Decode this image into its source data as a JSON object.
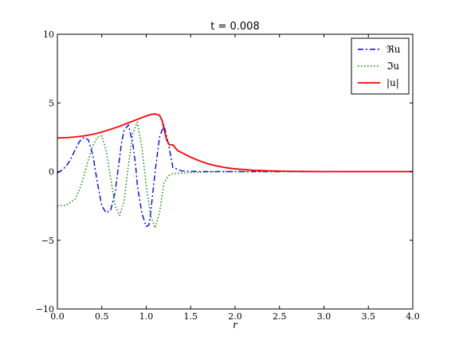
{
  "chart_data": {
    "type": "line",
    "title": "t = 0.008",
    "xlabel": "r",
    "ylabel": "",
    "xlim": [
      0.0,
      4.0
    ],
    "ylim": [
      -10,
      10
    ],
    "xticks": [
      0.0,
      0.5,
      1.0,
      1.5,
      2.0,
      2.5,
      3.0,
      3.5,
      4.0
    ],
    "xtick_labels": [
      "0.0",
      "0.5",
      "1.0",
      "1.5",
      "2.0",
      "2.5",
      "3.0",
      "3.5",
      "4.0"
    ],
    "yticks": [
      -10,
      -5,
      0,
      5,
      10
    ],
    "ytick_labels": [
      "−10",
      "−5",
      "0",
      "5",
      "10"
    ],
    "grid": false,
    "legend_position": "top-right",
    "series": [
      {
        "name": "ℜu",
        "color": "#0000ff",
        "style": "dashdot",
        "x": [
          0.0,
          0.05,
          0.1,
          0.15,
          0.2,
          0.25,
          0.3,
          0.35,
          0.4,
          0.45,
          0.5,
          0.55,
          0.6,
          0.65,
          0.7,
          0.72,
          0.75,
          0.8,
          0.85,
          0.88,
          0.9,
          0.95,
          1.0,
          1.03,
          1.05,
          1.1,
          1.15,
          1.2,
          1.25,
          1.3,
          1.4,
          1.6,
          1.8,
          2.0,
          2.5,
          3.0,
          3.5,
          4.0
        ],
        "values": [
          -0.1,
          0.1,
          0.4,
          0.9,
          1.6,
          2.2,
          2.5,
          2.3,
          1.2,
          -0.8,
          -2.5,
          -3.0,
          -2.8,
          -1.5,
          1.0,
          2.0,
          3.0,
          3.4,
          2.0,
          0.5,
          -1.0,
          -3.0,
          -4.0,
          -3.9,
          -3.0,
          0.0,
          2.5,
          3.4,
          2.0,
          0.3,
          0.05,
          0.0,
          0.0,
          0.0,
          0.0,
          0.0,
          0.0,
          0.0
        ]
      },
      {
        "name": "ℑu",
        "color": "#008000",
        "style": "dotted",
        "x": [
          0.0,
          0.1,
          0.2,
          0.25,
          0.3,
          0.35,
          0.4,
          0.45,
          0.5,
          0.55,
          0.6,
          0.65,
          0.7,
          0.75,
          0.8,
          0.85,
          0.9,
          0.95,
          1.0,
          1.05,
          1.1,
          1.15,
          1.2,
          1.25,
          1.3,
          1.4,
          1.6,
          1.8,
          2.0,
          2.5,
          3.0,
          3.5,
          4.0
        ],
        "values": [
          -2.5,
          -2.45,
          -2.0,
          -1.3,
          -0.3,
          0.9,
          1.9,
          2.5,
          2.6,
          1.5,
          -0.5,
          -2.5,
          -3.2,
          -2.2,
          0.5,
          2.8,
          3.6,
          1.8,
          -1.0,
          -3.2,
          -4.1,
          -3.0,
          -0.8,
          -0.3,
          -0.15,
          -0.1,
          -0.05,
          0.0,
          0.0,
          0.0,
          0.0,
          0.0,
          0.0
        ]
      },
      {
        "name": "|u|",
        "color": "#ff0000",
        "style": "solid",
        "x": [
          0.0,
          0.1,
          0.2,
          0.3,
          0.4,
          0.5,
          0.6,
          0.7,
          0.8,
          0.9,
          1.0,
          1.05,
          1.1,
          1.15,
          1.18,
          1.2,
          1.23,
          1.26,
          1.3,
          1.33,
          1.36,
          1.4,
          1.5,
          1.6,
          1.7,
          1.8,
          1.9,
          2.0,
          2.2,
          2.4,
          2.6,
          3.0,
          3.5,
          4.0
        ],
        "values": [
          2.45,
          2.47,
          2.52,
          2.6,
          2.72,
          2.88,
          3.08,
          3.3,
          3.55,
          3.8,
          4.05,
          4.15,
          4.2,
          4.1,
          3.7,
          3.1,
          2.3,
          1.95,
          1.95,
          1.7,
          1.5,
          1.38,
          1.05,
          0.78,
          0.56,
          0.4,
          0.28,
          0.2,
          0.1,
          0.05,
          0.02,
          0.0,
          0.0,
          0.0
        ]
      }
    ]
  }
}
